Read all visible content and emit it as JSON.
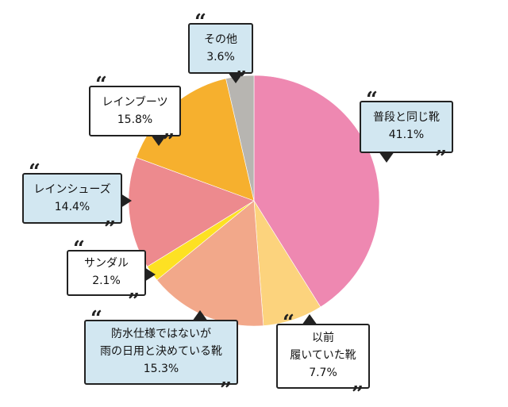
{
  "chart_data": {
    "type": "pie",
    "slices": [
      {
        "label": "普段と同じ靴",
        "value": 41.1,
        "value_label": "41.1%",
        "color": "#ee88b1"
      },
      {
        "label_lines": [
          "以前",
          "履いていた靴"
        ],
        "value": 7.7,
        "value_label": "7.7%",
        "color": "#fcd37d"
      },
      {
        "label_lines": [
          "防水仕様ではないが",
          "雨の日用と決めている靴"
        ],
        "value": 15.3,
        "value_label": "15.3%",
        "color": "#f2a88a"
      },
      {
        "label": "サンダル",
        "value": 2.1,
        "value_label": "2.1%",
        "color": "#fde123"
      },
      {
        "label": "レインシューズ",
        "value": 14.4,
        "value_label": "14.4%",
        "color": "#ed8a8e"
      },
      {
        "label": "レインブーツ",
        "value": 15.8,
        "value_label": "15.8%",
        "color": "#f6b02e"
      },
      {
        "label": "その他",
        "value": 3.6,
        "value_label": "3.6%",
        "color": "#b7b5b1"
      }
    ],
    "start": "12 o'clock",
    "direction": "clockwise"
  },
  "colors": {
    "callout_blue": "#d2e7f1",
    "callout_white": "#ffffff",
    "outline": "#222222"
  }
}
